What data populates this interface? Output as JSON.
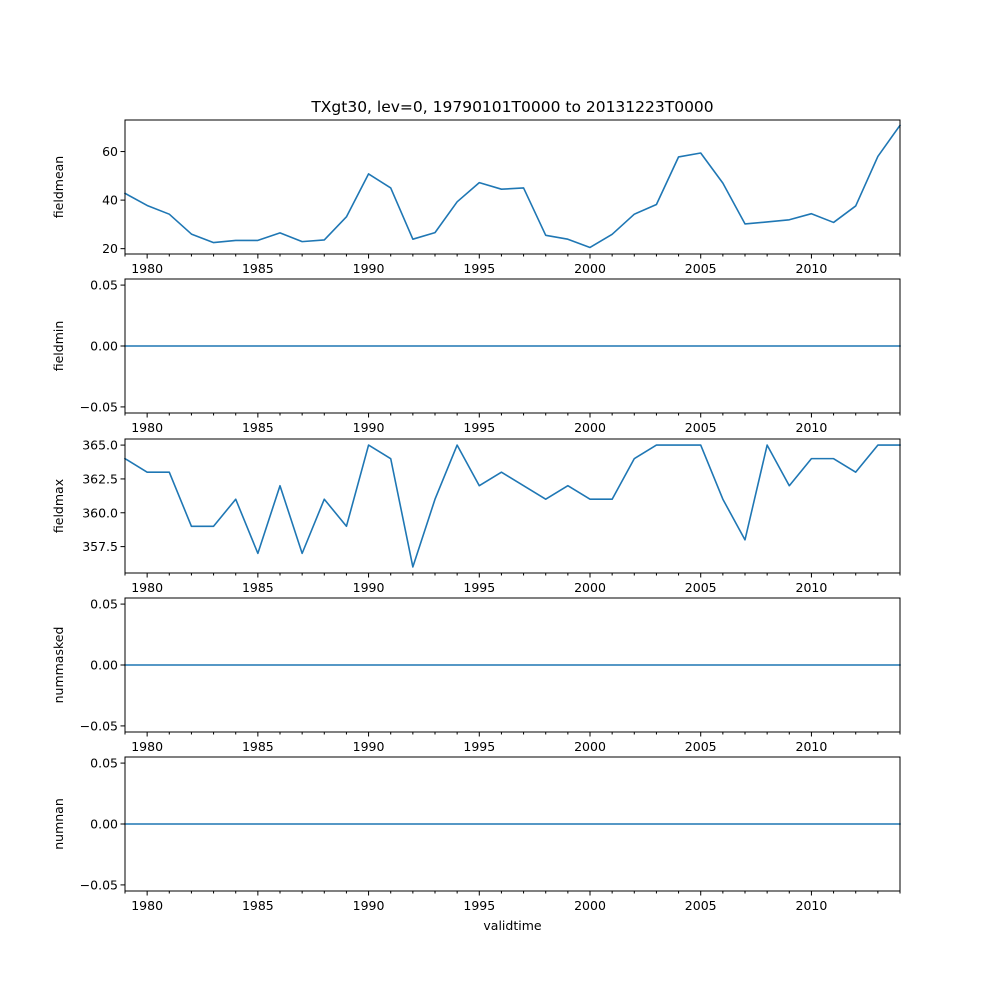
{
  "figure": {
    "title": "TXgt30, lev=0, 19790101T0000 to 20131223T0000",
    "xlabel": "validtime",
    "line_color": "#1f77b4"
  },
  "chart_data": [
    {
      "type": "line",
      "name": "fieldmean",
      "ylabel": "fieldmean",
      "x": [
        1979,
        1980,
        1981,
        1982,
        1983,
        1984,
        1985,
        1986,
        1987,
        1988,
        1989,
        1990,
        1991,
        1992,
        1993,
        1994,
        1995,
        1996,
        1997,
        1998,
        1999,
        2000,
        2001,
        2002,
        2003,
        2004,
        2005,
        2006,
        2007,
        2008,
        2009,
        2010,
        2011,
        2012,
        2013,
        2014
      ],
      "values": [
        42.8,
        37.8,
        34.2,
        26.0,
        22.5,
        23.4,
        23.4,
        26.5,
        22.9,
        23.6,
        33.1,
        50.8,
        45.0,
        23.9,
        26.6,
        39.3,
        47.2,
        44.5,
        45.0,
        25.5,
        23.9,
        20.5,
        25.9,
        34.2,
        38.2,
        57.8,
        59.4,
        47.0,
        30.2,
        31.0,
        31.9,
        34.4,
        30.8,
        37.6,
        58.0,
        70.8
      ],
      "xlim": [
        1979,
        2014
      ],
      "ylim": [
        17.8,
        73.0
      ],
      "xticks": [
        1980,
        1985,
        1990,
        1995,
        2000,
        2005,
        2010
      ],
      "xtick_labels": [
        "1980",
        "1985",
        "1990",
        "1995",
        "2000",
        "2005",
        "2010"
      ],
      "yticks": [
        20,
        40,
        60
      ],
      "ytick_labels": [
        "20",
        "40",
        "60"
      ]
    },
    {
      "type": "line",
      "name": "fieldmin",
      "ylabel": "fieldmin",
      "x": [
        1979,
        1980,
        1981,
        1982,
        1983,
        1984,
        1985,
        1986,
        1987,
        1988,
        1989,
        1990,
        1991,
        1992,
        1993,
        1994,
        1995,
        1996,
        1997,
        1998,
        1999,
        2000,
        2001,
        2002,
        2003,
        2004,
        2005,
        2006,
        2007,
        2008,
        2009,
        2010,
        2011,
        2012,
        2013,
        2014
      ],
      "values": [
        0,
        0,
        0,
        0,
        0,
        0,
        0,
        0,
        0,
        0,
        0,
        0,
        0,
        0,
        0,
        0,
        0,
        0,
        0,
        0,
        0,
        0,
        0,
        0,
        0,
        0,
        0,
        0,
        0,
        0,
        0,
        0,
        0,
        0,
        0,
        0
      ],
      "xlim": [
        1979,
        2014
      ],
      "ylim": [
        -0.055,
        0.055
      ],
      "xticks": [
        1980,
        1985,
        1990,
        1995,
        2000,
        2005,
        2010
      ],
      "xtick_labels": [
        "1980",
        "1985",
        "1990",
        "1995",
        "2000",
        "2005",
        "2010"
      ],
      "yticks": [
        -0.05,
        0,
        0.05
      ],
      "ytick_labels": [
        "−0.05",
        "0.00",
        "0.05"
      ]
    },
    {
      "type": "line",
      "name": "fieldmax",
      "ylabel": "fieldmax",
      "x": [
        1979,
        1980,
        1981,
        1982,
        1983,
        1984,
        1985,
        1986,
        1987,
        1988,
        1989,
        1990,
        1991,
        1992,
        1993,
        1994,
        1995,
        1996,
        1997,
        1998,
        1999,
        2000,
        2001,
        2002,
        2003,
        2004,
        2005,
        2006,
        2007,
        2008,
        2009,
        2010,
        2011,
        2012,
        2013,
        2014
      ],
      "values": [
        364,
        363,
        363,
        359,
        359,
        361,
        357,
        362,
        357,
        361,
        359,
        365,
        364,
        356,
        361,
        365,
        362,
        363,
        362,
        361,
        362,
        361,
        361,
        364,
        365,
        365,
        365,
        361,
        358,
        365,
        362,
        364,
        364,
        363,
        365,
        365
      ],
      "xlim": [
        1979,
        2014
      ],
      "ylim": [
        355.55,
        365.45
      ],
      "xticks": [
        1980,
        1985,
        1990,
        1995,
        2000,
        2005,
        2010
      ],
      "xtick_labels": [
        "1980",
        "1985",
        "1990",
        "1995",
        "2000",
        "2005",
        "2010"
      ],
      "yticks": [
        357.5,
        360,
        362.5,
        365
      ],
      "ytick_labels": [
        "357.5",
        "360.0",
        "362.5",
        "365.0"
      ]
    },
    {
      "type": "line",
      "name": "nummasked",
      "ylabel": "nummasked",
      "x": [
        1979,
        1980,
        1981,
        1982,
        1983,
        1984,
        1985,
        1986,
        1987,
        1988,
        1989,
        1990,
        1991,
        1992,
        1993,
        1994,
        1995,
        1996,
        1997,
        1998,
        1999,
        2000,
        2001,
        2002,
        2003,
        2004,
        2005,
        2006,
        2007,
        2008,
        2009,
        2010,
        2011,
        2012,
        2013,
        2014
      ],
      "values": [
        0,
        0,
        0,
        0,
        0,
        0,
        0,
        0,
        0,
        0,
        0,
        0,
        0,
        0,
        0,
        0,
        0,
        0,
        0,
        0,
        0,
        0,
        0,
        0,
        0,
        0,
        0,
        0,
        0,
        0,
        0,
        0,
        0,
        0,
        0,
        0
      ],
      "xlim": [
        1979,
        2014
      ],
      "ylim": [
        -0.055,
        0.055
      ],
      "xticks": [
        1980,
        1985,
        1990,
        1995,
        2000,
        2005,
        2010
      ],
      "xtick_labels": [
        "1980",
        "1985",
        "1990",
        "1995",
        "2000",
        "2005",
        "2010"
      ],
      "yticks": [
        -0.05,
        0,
        0.05
      ],
      "ytick_labels": [
        "−0.05",
        "0.00",
        "0.05"
      ]
    },
    {
      "type": "line",
      "name": "numnan",
      "ylabel": "numnan",
      "x": [
        1979,
        1980,
        1981,
        1982,
        1983,
        1984,
        1985,
        1986,
        1987,
        1988,
        1989,
        1990,
        1991,
        1992,
        1993,
        1994,
        1995,
        1996,
        1997,
        1998,
        1999,
        2000,
        2001,
        2002,
        2003,
        2004,
        2005,
        2006,
        2007,
        2008,
        2009,
        2010,
        2011,
        2012,
        2013,
        2014
      ],
      "values": [
        0,
        0,
        0,
        0,
        0,
        0,
        0,
        0,
        0,
        0,
        0,
        0,
        0,
        0,
        0,
        0,
        0,
        0,
        0,
        0,
        0,
        0,
        0,
        0,
        0,
        0,
        0,
        0,
        0,
        0,
        0,
        0,
        0,
        0,
        0,
        0
      ],
      "xlim": [
        1979,
        2014
      ],
      "ylim": [
        -0.055,
        0.055
      ],
      "xticks": [
        1980,
        1985,
        1990,
        1995,
        2000,
        2005,
        2010
      ],
      "xtick_labels": [
        "1980",
        "1985",
        "1990",
        "1995",
        "2000",
        "2005",
        "2010"
      ],
      "yticks": [
        -0.05,
        0,
        0.05
      ],
      "ytick_labels": [
        "−0.05",
        "0.00",
        "0.05"
      ]
    }
  ]
}
